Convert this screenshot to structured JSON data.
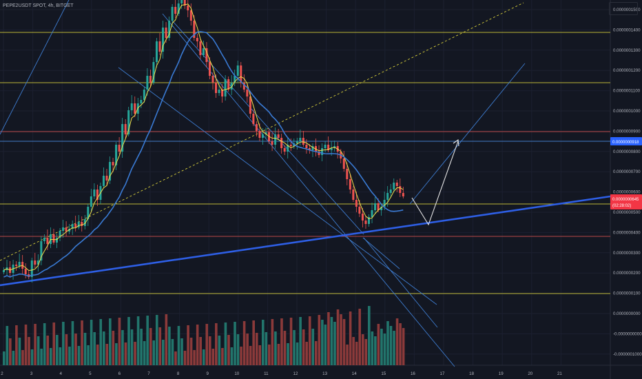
{
  "header": {
    "symbol_line": "PEPE2USDT SPOT, 4h, BITGET"
  },
  "price_axis": {
    "labels": [
      "0.0000001500",
      "0.0000001400",
      "0.0000001300",
      "0.0000001200",
      "0.0000001100",
      "0.0000001000",
      "0.0000000900",
      "0.0000000800",
      "0.0000000700",
      "0.0000000600",
      "0.0000000500",
      "0.0000000400",
      "0.0000000300",
      "0.0000000200",
      "0.0000000100",
      "0.0000000000",
      "-0.0000000000",
      "-0.0000001000"
    ],
    "tag_blue": "0.0000000918",
    "tag_red_price": "0.0000000645",
    "tag_red_timer": "02:28:02"
  },
  "time_axis": {
    "labels": [
      "2",
      "3",
      "4",
      "5",
      "6",
      "7",
      "8",
      "9",
      "10",
      "11",
      "12",
      "13",
      "14",
      "15",
      "16",
      "17",
      "18",
      "19",
      "20",
      "21"
    ]
  },
  "colors": {
    "background": "#131722",
    "bull": "#26a69a",
    "bear": "#ef5350",
    "bull_volume": "#22756c",
    "bear_volume": "#8b3a3a",
    "ma_fast": "#f2e14c",
    "ma_slow": "#3a7bd5",
    "support_line": "#2e5fe6",
    "level_yellow": "#dcd43c",
    "level_red": "#d9534f",
    "level_blue": "#4c8ee6"
  }
}
